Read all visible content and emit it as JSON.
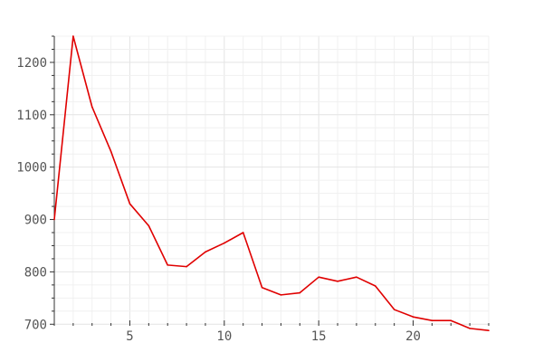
{
  "chart_data": {
    "type": "line",
    "title": "",
    "xlabel": "",
    "ylabel": "",
    "x": [
      1,
      2,
      3,
      4,
      5,
      6,
      7,
      8,
      9,
      10,
      11,
      12,
      13,
      14,
      15,
      16,
      17,
      18,
      19,
      20,
      21,
      22,
      23,
      24
    ],
    "series": [
      {
        "color": "#e00000",
        "values": [
          900,
          1250,
          1115,
          1030,
          930,
          888,
          813,
          810,
          838,
          855,
          875,
          770,
          756,
          760,
          790,
          782,
          790,
          773,
          728,
          714,
          707,
          707,
          692,
          688
        ]
      }
    ],
    "xlim": [
      1,
      24
    ],
    "ylim": [
      697,
      1250
    ],
    "xticks": [
      5,
      10,
      15,
      20
    ],
    "yticks": [
      700,
      800,
      900,
      1000,
      1100,
      1200
    ],
    "x_minor_step": 1,
    "y_minor_step": 25,
    "grid": true,
    "legend": "none"
  }
}
